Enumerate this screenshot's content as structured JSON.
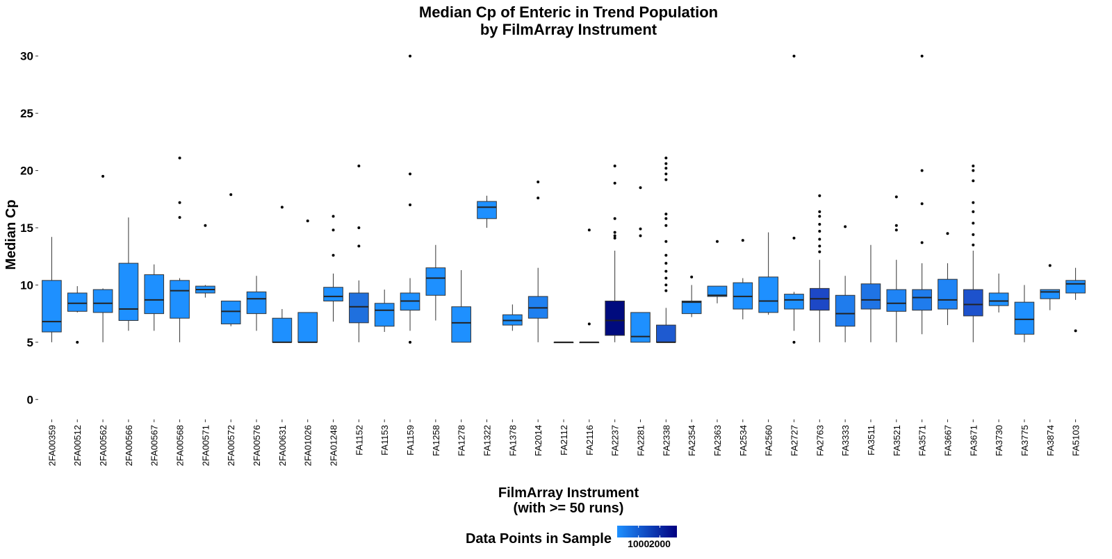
{
  "chart_data": {
    "type": "boxplot",
    "title_line1": "Median Cp of Enteric in Trend Population",
    "title_line2": "by FilmArray Instrument",
    "ylabel": "Median Cp",
    "xlabel_line1": "FilmArray Instrument",
    "xlabel_line2": "(with >= 50 runs)",
    "ylim": [
      -1.5,
      31.5
    ],
    "yticks": [
      0,
      5,
      10,
      15,
      20,
      25,
      30
    ],
    "grid": false,
    "legend": {
      "title": "Data Points in Sample",
      "position": "bottom",
      "gradient_low_color": "#1E90FF",
      "gradient_high_color": "#000080",
      "range": [
        1,
        2800
      ],
      "tick_values": [
        1000,
        2000
      ],
      "tick_labels": [
        "1000",
        "2000"
      ]
    },
    "boxes": [
      {
        "category": "2FA00359",
        "whisker_low": 5.0,
        "q1": 5.9,
        "median": 6.8,
        "q3": 10.4,
        "whisker_high": 14.2,
        "outliers": [],
        "color": "#1E90FF"
      },
      {
        "category": "2FA00512",
        "whisker_low": 7.6,
        "q1": 7.7,
        "median": 8.4,
        "q3": 9.3,
        "whisker_high": 9.9,
        "outliers": [
          5.0
        ],
        "color": "#1E90FF"
      },
      {
        "category": "2FA00562",
        "whisker_low": 5.0,
        "q1": 7.6,
        "median": 8.4,
        "q3": 9.6,
        "whisker_high": 9.7,
        "outliers": [
          19.5
        ],
        "color": "#1E90FF"
      },
      {
        "category": "2FA00566",
        "whisker_low": 6.0,
        "q1": 6.9,
        "median": 7.9,
        "q3": 11.9,
        "whisker_high": 15.9,
        "outliers": [],
        "color": "#1E90FF"
      },
      {
        "category": "2FA00567",
        "whisker_low": 6.0,
        "q1": 7.5,
        "median": 8.7,
        "q3": 10.9,
        "whisker_high": 11.8,
        "outliers": [],
        "color": "#1E90FF"
      },
      {
        "category": "2FA00568",
        "whisker_low": 5.0,
        "q1": 7.1,
        "median": 9.5,
        "q3": 10.4,
        "whisker_high": 10.6,
        "outliers": [
          15.9,
          17.2,
          21.1
        ],
        "color": "#1E90FF"
      },
      {
        "category": "2FA00571",
        "whisker_low": 8.9,
        "q1": 9.3,
        "median": 9.6,
        "q3": 9.9,
        "whisker_high": 10.0,
        "outliers": [
          15.2
        ],
        "color": "#1E90FF"
      },
      {
        "category": "2FA00572",
        "whisker_low": 6.4,
        "q1": 6.6,
        "median": 7.7,
        "q3": 8.6,
        "whisker_high": 8.6,
        "outliers": [
          17.9
        ],
        "color": "#1E90FF"
      },
      {
        "category": "2FA00576",
        "whisker_low": 6.0,
        "q1": 7.5,
        "median": 8.8,
        "q3": 9.4,
        "whisker_high": 10.8,
        "outliers": [],
        "color": "#1E90FF"
      },
      {
        "category": "2FA00631",
        "whisker_low": 5.0,
        "q1": 5.0,
        "median": 5.0,
        "q3": 7.1,
        "whisker_high": 7.9,
        "outliers": [
          16.8
        ],
        "color": "#1E90FF"
      },
      {
        "category": "2FA01026",
        "whisker_low": 5.0,
        "q1": 5.0,
        "median": 5.0,
        "q3": 7.6,
        "whisker_high": 7.6,
        "outliers": [
          15.6
        ],
        "color": "#1E90FF"
      },
      {
        "category": "2FA01248",
        "whisker_low": 6.8,
        "q1": 8.6,
        "median": 9.0,
        "q3": 9.8,
        "whisker_high": 11.0,
        "outliers": [
          12.6,
          14.8,
          16.0
        ],
        "color": "#1E90FF"
      },
      {
        "category": "FA1152",
        "whisker_low": 5.0,
        "q1": 6.7,
        "median": 8.1,
        "q3": 9.3,
        "whisker_high": 10.4,
        "outliers": [
          13.4,
          15.0,
          20.4
        ],
        "color": "#1F70DE"
      },
      {
        "category": "FA1153",
        "whisker_low": 5.9,
        "q1": 6.4,
        "median": 7.8,
        "q3": 8.4,
        "whisker_high": 9.6,
        "outliers": [],
        "color": "#1E90FF"
      },
      {
        "category": "FA1159",
        "whisker_low": 6.0,
        "q1": 7.8,
        "median": 8.6,
        "q3": 9.3,
        "whisker_high": 10.6,
        "outliers": [
          5.0,
          17.0,
          19.7,
          30.0
        ],
        "color": "#1E90FF"
      },
      {
        "category": "FA1258",
        "whisker_low": 6.9,
        "q1": 9.1,
        "median": 10.6,
        "q3": 11.5,
        "whisker_high": 13.5,
        "outliers": [],
        "color": "#1E90FF"
      },
      {
        "category": "FA1278",
        "whisker_low": 5.0,
        "q1": 5.0,
        "median": 6.7,
        "q3": 8.1,
        "whisker_high": 11.3,
        "outliers": [],
        "color": "#1E90FF"
      },
      {
        "category": "FA1322",
        "whisker_low": 15.0,
        "q1": 15.8,
        "median": 16.8,
        "q3": 17.3,
        "whisker_high": 17.8,
        "outliers": [],
        "color": "#1E90FF"
      },
      {
        "category": "FA1378",
        "whisker_low": 6.0,
        "q1": 6.5,
        "median": 6.9,
        "q3": 7.4,
        "whisker_high": 8.3,
        "outliers": [],
        "color": "#1E90FF"
      },
      {
        "category": "FA2014",
        "whisker_low": 5.0,
        "q1": 7.1,
        "median": 8.0,
        "q3": 9.0,
        "whisker_high": 11.5,
        "outliers": [
          17.6,
          19.0
        ],
        "color": "#1F80F0"
      },
      {
        "category": "FA2112",
        "whisker_low": 5.0,
        "q1": 5.0,
        "median": 5.0,
        "q3": 5.0,
        "whisker_high": 5.0,
        "outliers": [],
        "color": "#1E90FF"
      },
      {
        "category": "FA2116",
        "whisker_low": 5.0,
        "q1": 5.0,
        "median": 5.0,
        "q3": 5.0,
        "whisker_high": 5.0,
        "outliers": [
          6.6,
          14.8
        ],
        "color": "#1E90FF"
      },
      {
        "category": "FA2237",
        "whisker_low": 5.0,
        "q1": 5.6,
        "median": 6.9,
        "q3": 8.6,
        "whisker_high": 13.0,
        "outliers": [
          14.1,
          14.3,
          14.6,
          15.8,
          18.9,
          20.4
        ],
        "color": "#000B7E"
      },
      {
        "category": "FA2281",
        "whisker_low": 5.0,
        "q1": 5.0,
        "median": 5.5,
        "q3": 7.6,
        "whisker_high": 7.6,
        "outliers": [
          14.3,
          14.9,
          18.5
        ],
        "color": "#1E90FF"
      },
      {
        "category": "FA2338",
        "whisker_low": 5.0,
        "q1": 5.0,
        "median": 5.0,
        "q3": 6.5,
        "whisker_high": 8.0,
        "outliers": [
          9.5,
          10.0,
          10.6,
          11.2,
          11.9,
          12.6,
          13.8,
          15.2,
          15.8,
          16.2,
          19.2,
          19.7,
          20.2,
          20.6,
          21.1
        ],
        "color": "#1E5AD0"
      },
      {
        "category": "FA2354",
        "whisker_low": 7.2,
        "q1": 7.5,
        "median": 8.5,
        "q3": 8.6,
        "whisker_high": 10.0,
        "outliers": [
          10.7
        ],
        "color": "#1E90FF"
      },
      {
        "category": "FA2363",
        "whisker_low": 8.4,
        "q1": 9.0,
        "median": 9.1,
        "q3": 9.9,
        "whisker_high": 9.9,
        "outliers": [
          13.8
        ],
        "color": "#1E90FF"
      },
      {
        "category": "FA2534",
        "whisker_low": 7.0,
        "q1": 7.9,
        "median": 9.0,
        "q3": 10.2,
        "whisker_high": 10.6,
        "outliers": [
          13.9
        ],
        "color": "#1E90FF"
      },
      {
        "category": "FA2560",
        "whisker_low": 7.4,
        "q1": 7.6,
        "median": 8.6,
        "q3": 10.7,
        "whisker_high": 14.6,
        "outliers": [],
        "color": "#1E90FF"
      },
      {
        "category": "FA2727",
        "whisker_low": 6.0,
        "q1": 7.9,
        "median": 8.7,
        "q3": 9.2,
        "whisker_high": 9.4,
        "outliers": [
          5.0,
          14.1,
          30.0
        ],
        "color": "#1E90FF"
      },
      {
        "category": "FA2763",
        "whisker_low": 5.0,
        "q1": 7.8,
        "median": 8.8,
        "q3": 9.7,
        "whisker_high": 12.2,
        "outliers": [
          12.9,
          13.4,
          14.0,
          14.7,
          15.3,
          16.0,
          16.4,
          17.8
        ],
        "color": "#1D48C6"
      },
      {
        "category": "FA3333",
        "whisker_low": 5.0,
        "q1": 6.4,
        "median": 7.5,
        "q3": 9.1,
        "whisker_high": 10.8,
        "outliers": [
          15.1
        ],
        "color": "#1F7CED"
      },
      {
        "category": "FA3511",
        "whisker_low": 5.0,
        "q1": 7.9,
        "median": 8.7,
        "q3": 10.1,
        "whisker_high": 13.5,
        "outliers": [],
        "color": "#1F74E5"
      },
      {
        "category": "FA3521",
        "whisker_low": 5.0,
        "q1": 7.7,
        "median": 8.4,
        "q3": 9.6,
        "whisker_high": 12.2,
        "outliers": [
          14.8,
          15.2,
          17.7
        ],
        "color": "#1F84F5"
      },
      {
        "category": "FA3571",
        "whisker_low": 5.7,
        "q1": 7.8,
        "median": 8.9,
        "q3": 9.6,
        "whisker_high": 11.9,
        "outliers": [
          13.7,
          17.1,
          20.0,
          30.0
        ],
        "color": "#1F7CED"
      },
      {
        "category": "FA3667",
        "whisker_low": 6.5,
        "q1": 7.9,
        "median": 8.7,
        "q3": 10.5,
        "whisker_high": 11.9,
        "outliers": [
          14.5
        ],
        "color": "#1F84F5"
      },
      {
        "category": "FA3671",
        "whisker_low": 5.0,
        "q1": 7.3,
        "median": 8.3,
        "q3": 9.6,
        "whisker_high": 13.0,
        "outliers": [
          13.5,
          14.4,
          15.4,
          16.4,
          17.2,
          19.1,
          20.0,
          20.4
        ],
        "color": "#1D52CC"
      },
      {
        "category": "FA3730",
        "whisker_low": 7.6,
        "q1": 8.2,
        "median": 8.6,
        "q3": 9.3,
        "whisker_high": 11.0,
        "outliers": [],
        "color": "#1E90FF"
      },
      {
        "category": "FA3775",
        "whisker_low": 5.0,
        "q1": 5.7,
        "median": 7.0,
        "q3": 8.5,
        "whisker_high": 10.0,
        "outliers": [],
        "color": "#1E90FF"
      },
      {
        "category": "FA3874",
        "whisker_low": 7.8,
        "q1": 8.8,
        "median": 9.4,
        "q3": 9.6,
        "whisker_high": 9.6,
        "outliers": [
          11.7
        ],
        "color": "#1E90FF"
      },
      {
        "category": "FA5103",
        "whisker_low": 8.7,
        "q1": 9.3,
        "median": 10.1,
        "q3": 10.4,
        "whisker_high": 11.5,
        "outliers": [
          6.0
        ],
        "color": "#1E90FF"
      }
    ]
  }
}
